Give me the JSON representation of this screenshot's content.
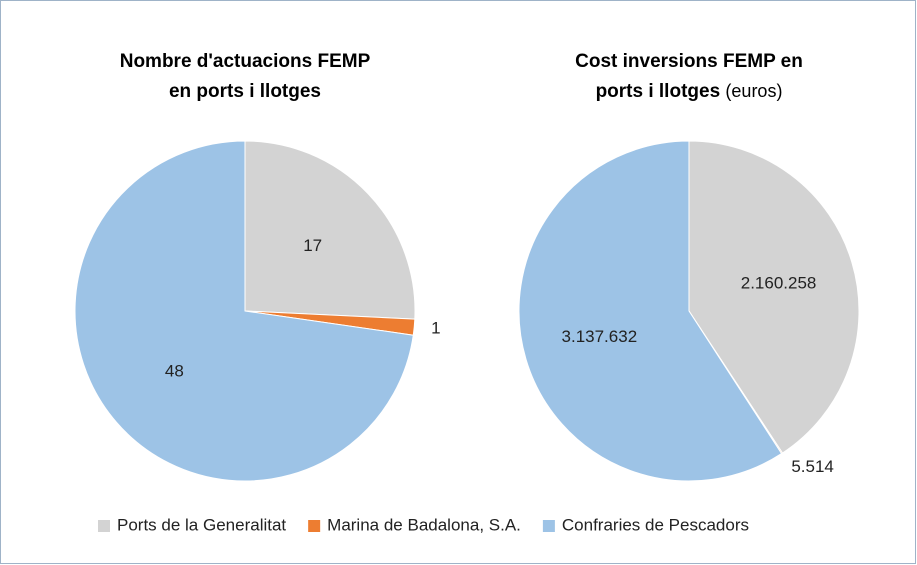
{
  "legend": {
    "categories": [
      "Ports de la Generalitat",
      "Marina de Badalona, S.A.",
      "Confraries de Pescadors"
    ],
    "colors": [
      "#d3d3d3",
      "#ed7d31",
      "#9dc3e6"
    ]
  },
  "chart_data": [
    {
      "type": "pie",
      "title": [
        "Nombre d'actuacions FEMP",
        "en ports i llotges"
      ],
      "values": [
        17,
        1,
        48
      ]
    },
    {
      "type": "pie",
      "title": [
        "Cost inversions FEMP en",
        "ports i llotges"
      ],
      "subtitle": "(euros)",
      "values": [
        2160258,
        5514,
        3137632
      ],
      "value_labels": [
        "2.160.258",
        "5.514",
        "3.137.632"
      ]
    }
  ]
}
